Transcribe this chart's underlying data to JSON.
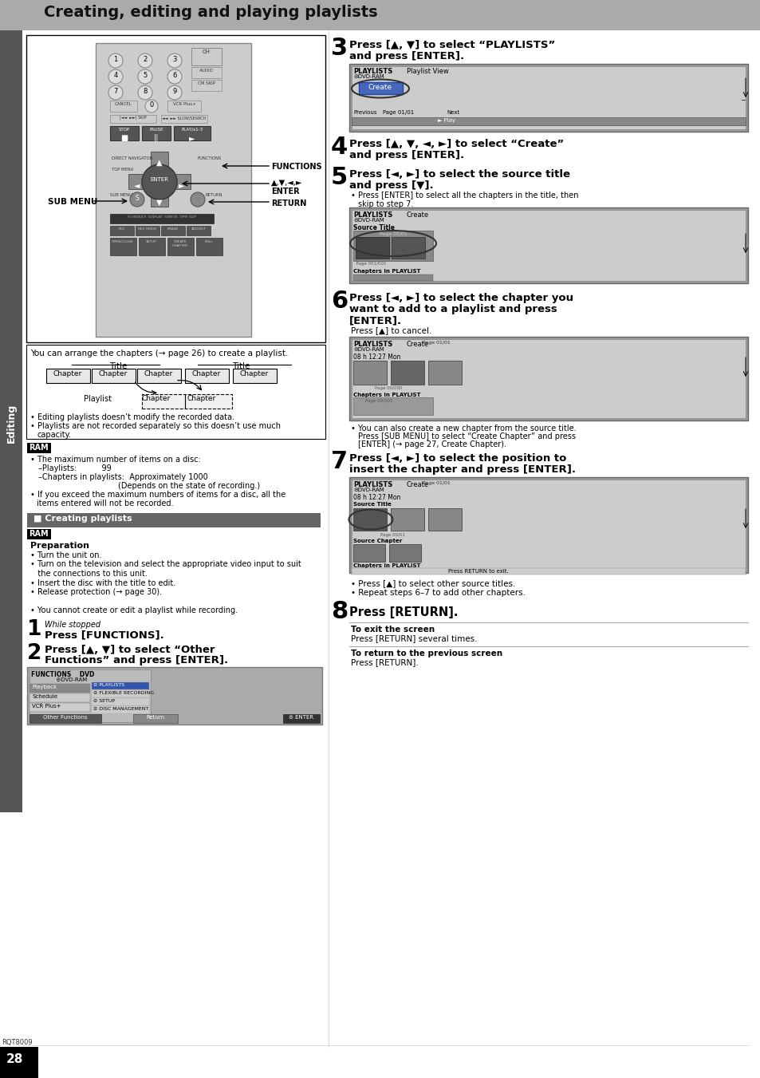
{
  "page_bg": "#ffffff",
  "header_bg": "#aaaaaa",
  "header_text": "Creating, editing and playing playlists",
  "header_text_color": "#000000",
  "page_number": "28",
  "page_num_bg": "#000000",
  "page_num_color": "#ffffff",
  "side_label": "Editing",
  "side_label_color": "#ffffff",
  "side_label_bg": "#555555",
  "section_title_creating": "Creating playlists",
  "section_title_bg": "#666666",
  "section_title_color": "#ffffff",
  "ram_badge_bg": "#000000",
  "ram_badge_color": "#ffffff",
  "body_text_color": "#000000",
  "screen_bg": "#cccccc",
  "screen_border": "#000000"
}
